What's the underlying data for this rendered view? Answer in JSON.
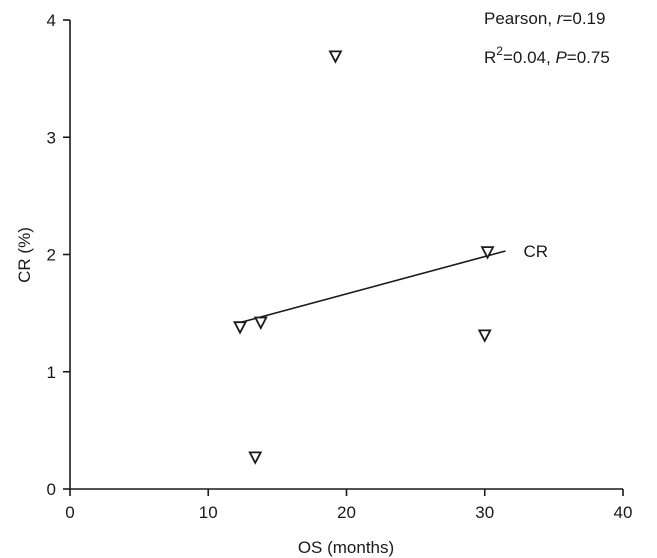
{
  "chart_data": {
    "type": "scatter",
    "xlabel": "OS (months)",
    "ylabel": "CR (%)",
    "xlim": [
      0,
      40
    ],
    "ylim": [
      0,
      4
    ],
    "xticks": [
      0,
      10,
      20,
      30,
      40
    ],
    "yticks": [
      0,
      1,
      2,
      3,
      4
    ],
    "grid": false,
    "marker": "open-down-triangle",
    "series": [
      {
        "points": [
          {
            "x": 19.2,
            "y": 3.69
          },
          {
            "x": 12.3,
            "y": 1.38
          },
          {
            "x": 13.8,
            "y": 1.42
          },
          {
            "x": 30.2,
            "y": 2.02
          },
          {
            "x": 30.0,
            "y": 1.31
          },
          {
            "x": 13.4,
            "y": 0.27
          }
        ]
      }
    ],
    "fit_line": {
      "label": "CR",
      "x": [
        12.0,
        31.5
      ],
      "y": [
        1.41,
        2.03
      ]
    },
    "stats": {
      "line1_prefix": "Pearson, ",
      "line1_italic": "r",
      "line1_value": "=0.19",
      "line2_r": "R",
      "line2_sup": "2",
      "line2_value": "=0.04, ",
      "line2_italic": "P",
      "line2_pvalue": "=0.75"
    }
  }
}
